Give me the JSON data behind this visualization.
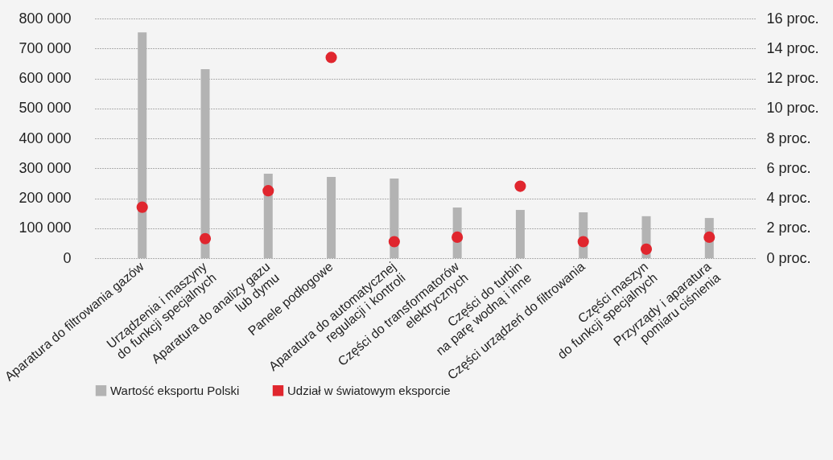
{
  "chart_data": {
    "type": "bar",
    "categories": [
      "Aparatura do filtrowania gazów",
      "Urządzenia i maszyny\ndo funkcji specjalnych",
      "Aparatura do analizy gazu\nlub dymu",
      "Panele podłogowe",
      "Aparatura do automatycznej\nregulacji i kontroli",
      "Części do transformatorów\nelektrycznych",
      "Części do turbin\nna parę wodną i inne",
      "Części urządzeń do filtrowania",
      "Części maszyn\ndo funkcji specjalnych",
      "Przyrządy i aparatura\npomiaru ciśnienia"
    ],
    "series": [
      {
        "name": "Wartość eksportu Polski",
        "color": "#b3b3b3",
        "values": [
          754000,
          631000,
          282000,
          271000,
          266000,
          169000,
          161000,
          153000,
          140000,
          134000
        ]
      },
      {
        "name": "Udział w światowym eksporcie",
        "type": "scatter",
        "axis": "y2",
        "color": "#e0262e",
        "values": [
          3.4,
          1.3,
          4.5,
          13.4,
          1.1,
          1.4,
          4.8,
          1.1,
          0.6,
          1.4
        ]
      }
    ],
    "ylim": [
      0,
      800000
    ],
    "yticks": [
      {
        "value": 0,
        "label": "0"
      },
      {
        "value": 100000,
        "label": "100 000"
      },
      {
        "value": 200000,
        "label": "200 000"
      },
      {
        "value": 300000,
        "label": "300 000"
      },
      {
        "value": 400000,
        "label": "400 000"
      },
      {
        "value": 500000,
        "label": "500 000"
      },
      {
        "value": 600000,
        "label": "600 000"
      },
      {
        "value": 700000,
        "label": "700 000"
      },
      {
        "value": 800000,
        "label": "800 000"
      }
    ],
    "y2lim": [
      0,
      16
    ],
    "y2ticks": [
      {
        "value": 0,
        "label": "0 proc."
      },
      {
        "value": 2,
        "label": "2 proc."
      },
      {
        "value": 4,
        "label": "4 proc."
      },
      {
        "value": 6,
        "label": "6 proc."
      },
      {
        "value": 8,
        "label": "8 proc."
      },
      {
        "value": 10,
        "label": "10 proc."
      },
      {
        "value": 12,
        "label": "12 proc."
      },
      {
        "value": 14,
        "label": "14 proc."
      },
      {
        "value": 16,
        "label": "16 proc."
      }
    ],
    "grid": "y",
    "legend": "bottom",
    "marker": "circle"
  }
}
